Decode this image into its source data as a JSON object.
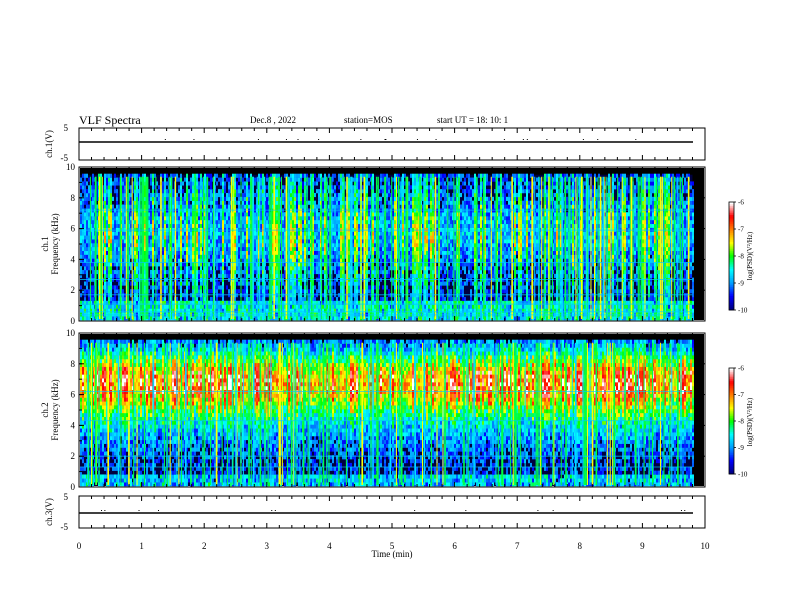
{
  "header": {
    "title": "VLF Spectra",
    "date": "Dec.8 , 2022",
    "station": "station=MOS",
    "start": "start UT = 18: 10: 1"
  },
  "colors": {
    "background": "#000000",
    "trace": "#000000",
    "colormap": [
      "#00007f",
      "#0000ff",
      "#00a0ff",
      "#00ffff",
      "#00ff00",
      "#ffff00",
      "#ff7f00",
      "#ff0000",
      "#ffffff"
    ]
  },
  "chart_data": [
    {
      "type": "line",
      "id": "ch1",
      "ylabel": "ch.1(V)",
      "ylim": [
        -5,
        5
      ],
      "yticks": [
        "5",
        "-5"
      ],
      "xlim": [
        0,
        10
      ],
      "trace_level": 0
    },
    {
      "type": "heatmap",
      "id": "spec1",
      "ylabel": "Frequency (kHz)",
      "channel_label": "ch.1",
      "ylim": [
        0,
        10
      ],
      "yticks": [
        "0",
        "2",
        "4",
        "6",
        "8",
        "10"
      ],
      "xlim": [
        0,
        9.8
      ],
      "colorbar": {
        "label": "log(PSD)(V²/Hz)",
        "ticks": [
          "-6",
          "-7",
          "-8",
          "-9",
          "-10"
        ],
        "range": [
          -10,
          -6
        ]
      },
      "background_level": -9.5,
      "hum_lines_khz": [
        0.4,
        0.6,
        1.1,
        1.7,
        2.7,
        3.8,
        5.9,
        7.2
      ],
      "activity": "broadband impulsive spherics 0-9 kHz throughout record"
    },
    {
      "type": "heatmap",
      "id": "spec2",
      "ylabel": "Frequency (kHz)",
      "channel_label": "ch.2",
      "ylim": [
        0,
        10
      ],
      "yticks": [
        "0",
        "2",
        "4",
        "6",
        "8",
        "10"
      ],
      "xlim": [
        0,
        9.8
      ],
      "colorbar": {
        "label": "log(PSD)(V²/Hz)",
        "ticks": [
          "-6",
          "-7",
          "-8",
          "-9",
          "-10"
        ],
        "range": [
          -10,
          -6
        ]
      },
      "background_level": -9.3,
      "hum_lines_khz": [
        1.3,
        2.0,
        4.3,
        6.2
      ],
      "activity": "intense broadband emission 5-9 kHz with impulsive spherics"
    },
    {
      "type": "line",
      "id": "ch3",
      "ylabel": "ch.3(V)",
      "ylim": [
        -5,
        5
      ],
      "yticks": [
        "5",
        "-5"
      ],
      "xlim": [
        0,
        10
      ],
      "trace_level": 0
    }
  ],
  "xaxis": {
    "label": "Time (min)",
    "ticks": [
      "0",
      "1",
      "2",
      "3",
      "4",
      "5",
      "6",
      "7",
      "8",
      "9",
      "10"
    ],
    "range": [
      0,
      10
    ]
  }
}
